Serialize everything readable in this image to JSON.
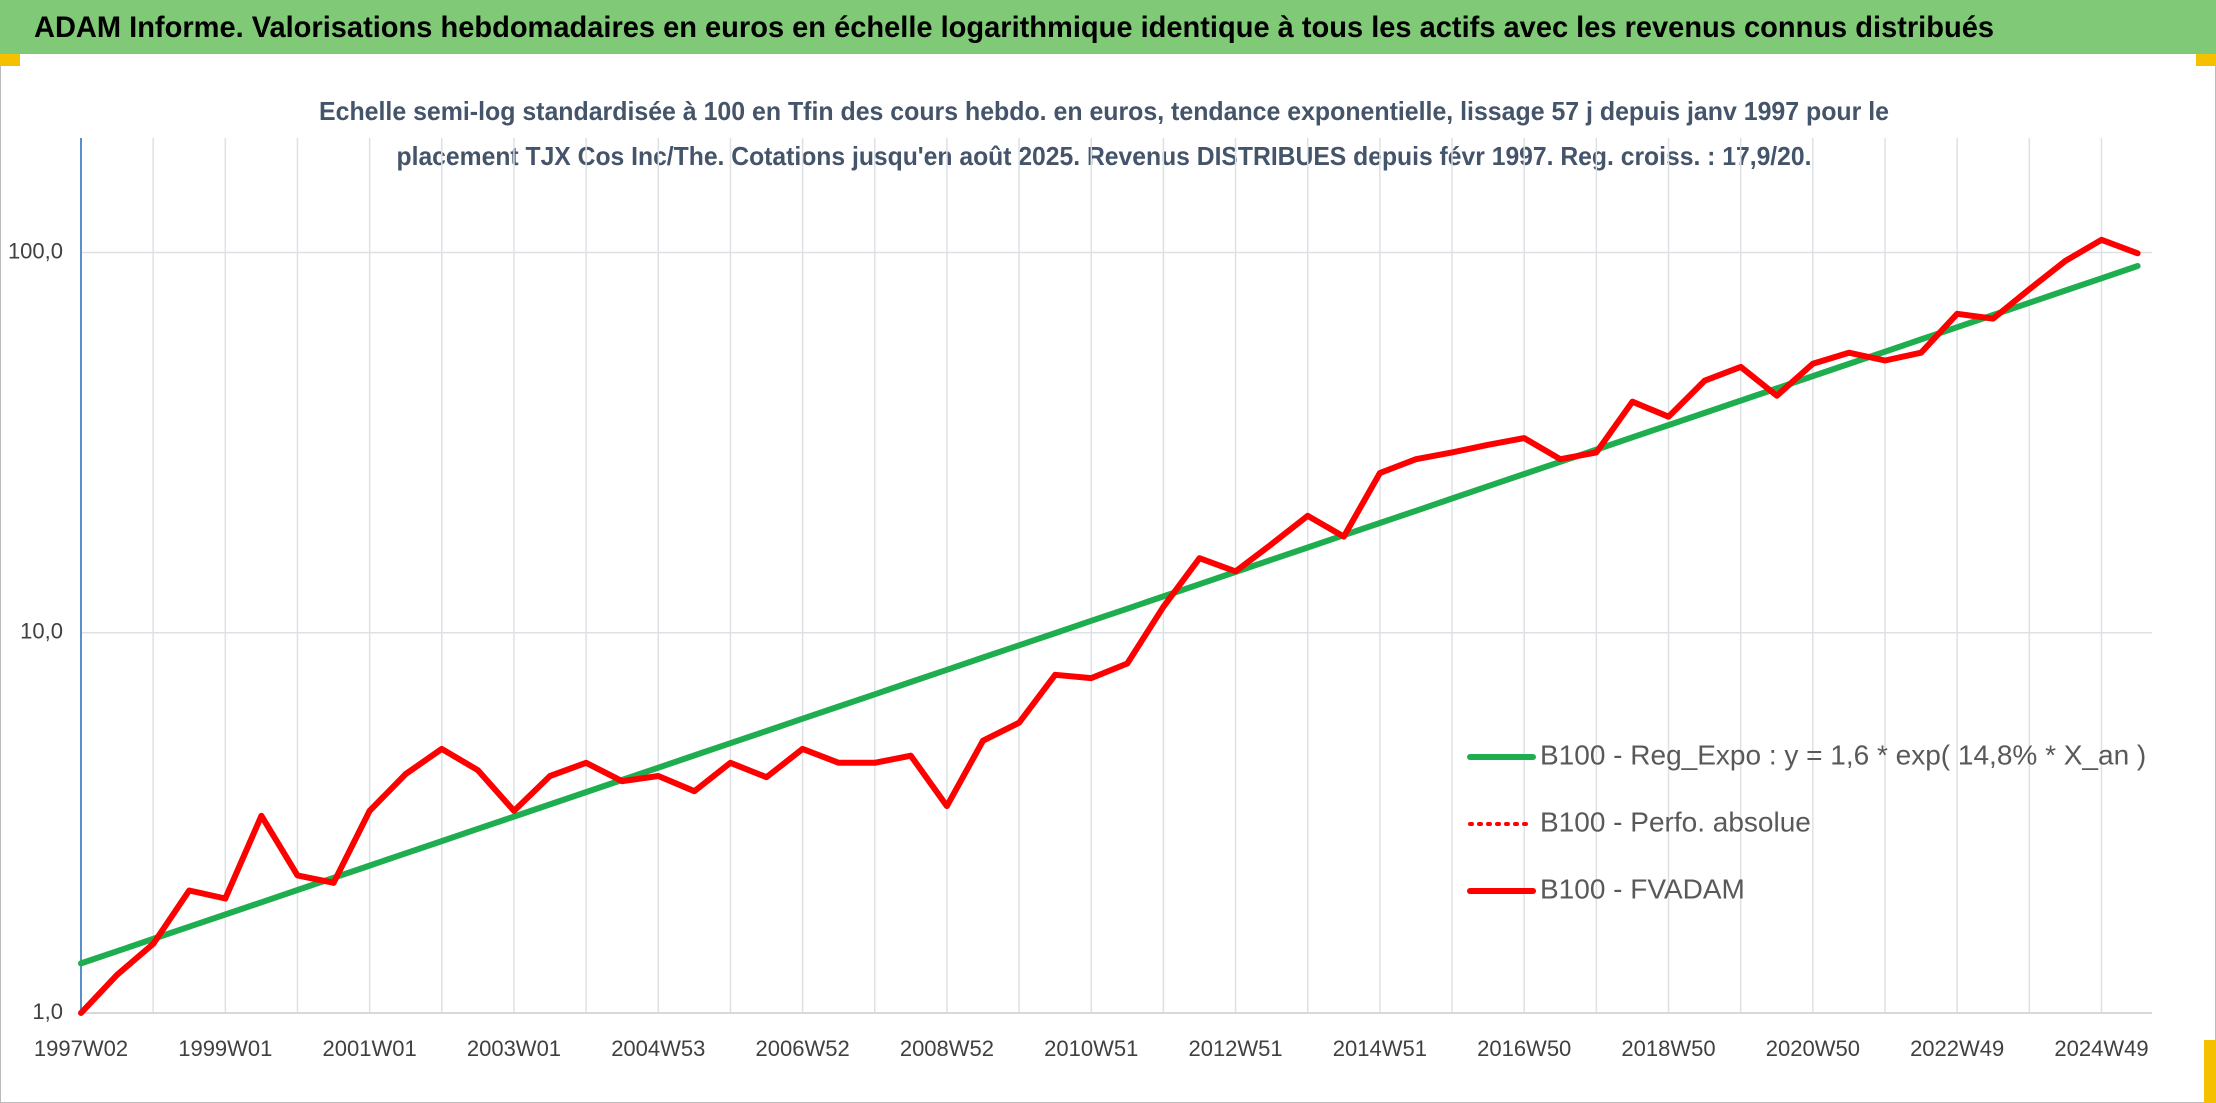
{
  "chart_data": {
    "type": "line",
    "title": "ADAM Informe. Valorisations hebdomadaires en euros en échelle logarithmique identique à tous les actifs avec les revenus connus distribués",
    "subtitle": [
      "Echelle semi-log standardisée à 100 en Tfin des cours hebdo. en euros, tendance exponentielle, lissage 57 j depuis janv 1997 pour le",
      "placement TJX Cos Inc/The. Cotations jusqu'en août 2025. Revenus DISTRIBUES depuis févr 1997. Reg. croiss. : 17,9/20."
    ],
    "categories": [
      "1997W02",
      null,
      null,
      null,
      "1999W01",
      null,
      null,
      null,
      "2001W01",
      null,
      null,
      null,
      "2003W01",
      null,
      null,
      null,
      "2004W53",
      null,
      null,
      null,
      "2006W52",
      null,
      null,
      null,
      "2008W52",
      null,
      null,
      null,
      "2010W51",
      null,
      null,
      null,
      "2012W51",
      null,
      null,
      null,
      "2014W51",
      null,
      null,
      null,
      "2016W50",
      null,
      null,
      null,
      "2018W50",
      null,
      null,
      null,
      "2020W50",
      null,
      null,
      null,
      "2022W49",
      null,
      null,
      null,
      "2024W49",
      null
    ],
    "series": [
      {
        "name": "B100 - Reg_Expo : y = 1,6 * exp( 14,8% *  X_an )",
        "color": "#1fae4f",
        "style": "solid",
        "values": [
          1.35,
          1.454,
          1.566,
          1.686,
          1.816,
          1.955,
          2.106,
          2.268,
          2.442,
          2.63,
          2.832,
          3.05,
          3.284,
          3.537,
          3.809,
          4.102,
          4.417,
          4.757,
          5.123,
          5.517,
          5.941,
          6.398,
          6.89,
          7.42,
          7.99,
          8.605,
          9.266,
          9.979,
          10.75,
          11.57,
          12.46,
          13.42,
          14.45,
          15.56,
          16.76,
          18.05,
          19.44,
          20.93,
          22.54,
          24.28,
          26.14,
          28.15,
          30.32,
          32.65,
          35.16,
          37.86,
          40.77,
          43.91,
          47.29,
          50.92,
          54.84,
          59.06,
          63.6,
          68.49,
          73.75,
          79.42,
          85.53,
          92.11
        ]
      },
      {
        "name": "B100 - Perfo. absolue",
        "color": "#ff0000",
        "style": "dotted",
        "values": [
          1.0,
          1.26,
          1.52,
          2.1,
          2.0,
          3.3,
          2.3,
          2.2,
          3.4,
          4.25,
          4.95,
          4.35,
          3.4,
          4.2,
          4.55,
          4.07,
          4.2,
          3.83,
          4.55,
          4.17,
          4.95,
          4.55,
          4.55,
          4.75,
          3.5,
          5.2,
          5.8,
          7.75,
          7.6,
          8.3,
          11.7,
          15.7,
          14.5,
          17.1,
          20.3,
          17.9,
          26.3,
          28.6,
          29.8,
          31.2,
          32.5,
          28.6,
          29.8,
          40.5,
          37,
          46,
          50,
          42,
          51,
          54.5,
          52,
          54.5,
          69,
          67,
          80,
          95,
          108,
          99.5
        ]
      },
      {
        "name": "B100 - FVADAM",
        "color": "#ff0000",
        "style": "solid",
        "values": [
          1.0,
          1.26,
          1.52,
          2.1,
          2.0,
          3.3,
          2.3,
          2.2,
          3.4,
          4.25,
          4.95,
          4.35,
          3.4,
          4.2,
          4.55,
          4.07,
          4.2,
          3.83,
          4.55,
          4.17,
          4.95,
          4.55,
          4.55,
          4.75,
          3.5,
          5.2,
          5.8,
          7.75,
          7.6,
          8.3,
          11.7,
          15.7,
          14.5,
          17.1,
          20.3,
          17.9,
          26.3,
          28.6,
          29.8,
          31.2,
          32.5,
          28.6,
          29.8,
          40.5,
          37,
          46,
          50,
          42,
          51,
          54.5,
          52,
          54.5,
          69,
          67,
          80,
          95,
          108,
          99.5
        ]
      }
    ],
    "ylim": [
      1,
      200
    ],
    "yticks": [
      {
        "value": 1,
        "label": "1,0"
      },
      {
        "value": 10,
        "label": "10,0"
      },
      {
        "value": 100,
        "label": "100,0"
      }
    ],
    "log_scale": true,
    "grid": true,
    "legend": "right"
  }
}
